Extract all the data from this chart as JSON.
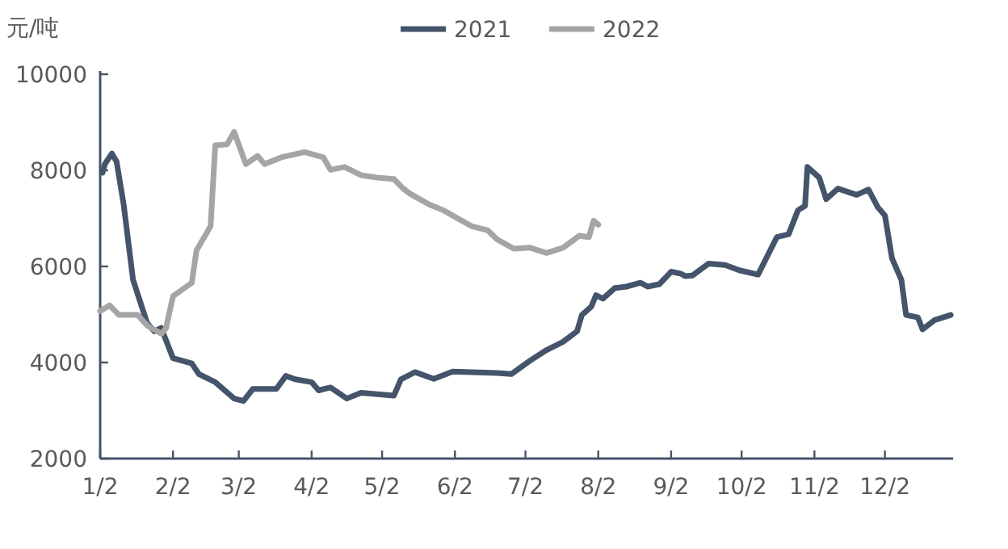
{
  "chart_data": {
    "type": "line",
    "ylabel": "元/吨",
    "legend": "top",
    "xlim": [
      "--01-02",
      "--12-31"
    ],
    "xticks": [
      {
        "value": "--01-02",
        "label": "1/2"
      },
      {
        "value": "--02-02",
        "label": "2/2"
      },
      {
        "value": "--03-02",
        "label": "3/2"
      },
      {
        "value": "--04-02",
        "label": "4/2"
      },
      {
        "value": "--05-02",
        "label": "5/2"
      },
      {
        "value": "--06-02",
        "label": "6/2"
      },
      {
        "value": "--07-02",
        "label": "7/2"
      },
      {
        "value": "--08-02",
        "label": "8/2"
      },
      {
        "value": "--09-02",
        "label": "9/2"
      },
      {
        "value": "--10-02",
        "label": "10/2"
      },
      {
        "value": "--11-02",
        "label": "11/2"
      },
      {
        "value": "--12-02",
        "label": "12/2"
      }
    ],
    "ylim": [
      2000,
      10000
    ],
    "yticks": [
      2000,
      4000,
      6000,
      8000,
      10000
    ],
    "series": [
      {
        "name": "2021",
        "color": "#44546a",
        "x": [
          "--01-03",
          "--01-04",
          "--01-07",
          "--01-09",
          "--01-12",
          "--01-16",
          "--01-19",
          "--01-22",
          "--01-25",
          "--01-28",
          "--02-02",
          "--02-10",
          "--02-13",
          "--02-20",
          "--02-28",
          "--03-04",
          "--03-08",
          "--03-18",
          "--03-22",
          "--03-26",
          "--04-02",
          "--04-05",
          "--04-10",
          "--04-17",
          "--04-23",
          "--05-07",
          "--05-10",
          "--05-16",
          "--05-24",
          "--06-01",
          "--06-20",
          "--06-26",
          "--07-04",
          "--07-11",
          "--07-18",
          "--07-24",
          "--07-26",
          "--07-30",
          "--08-01",
          "--08-04",
          "--08-09",
          "--08-14",
          "--08-20",
          "--08-23",
          "--08-28",
          "--09-02",
          "--09-06",
          "--09-08",
          "--09-11",
          "--09-18",
          "--09-25",
          "--10-01",
          "--10-09",
          "--10-13",
          "--10-17",
          "--10-22",
          "--10-26",
          "--10-29",
          "--10-30",
          "--11-04",
          "--11-07",
          "--11-12",
          "--11-20",
          "--11-25",
          "--11-29",
          "--12-02",
          "--12-05",
          "--12-09",
          "--12-11",
          "--12-16",
          "--12-18",
          "--12-23",
          "--12-30"
        ],
        "values": [
          7950,
          8130,
          8350,
          8180,
          7290,
          5720,
          5270,
          4820,
          4650,
          4720,
          4090,
          3980,
          3760,
          3590,
          3250,
          3200,
          3450,
          3450,
          3720,
          3650,
          3590,
          3420,
          3480,
          3250,
          3370,
          3310,
          3650,
          3800,
          3660,
          3810,
          3780,
          3760,
          4040,
          4260,
          4430,
          4650,
          4990,
          5160,
          5400,
          5330,
          5550,
          5580,
          5660,
          5580,
          5630,
          5890,
          5850,
          5800,
          5810,
          6060,
          6030,
          5920,
          5830,
          6220,
          6610,
          6670,
          7170,
          7260,
          8070,
          7850,
          7400,
          7620,
          7490,
          7600,
          7230,
          7060,
          6170,
          5720,
          4990,
          4940,
          4690,
          4880,
          4990
        ]
      },
      {
        "name": "2022",
        "color": "#a5a5a5",
        "x": [
          "--01-02",
          "--01-06",
          "--01-10",
          "--01-18",
          "--01-22",
          "--01-28",
          "--01-30",
          "--02-02",
          "--02-10",
          "--02-12",
          "--02-16",
          "--02-18",
          "--02-20",
          "--02-25",
          "--02-28",
          "--03-05",
          "--03-10",
          "--03-13",
          "--03-20",
          "--03-30",
          "--04-07",
          "--04-10",
          "--04-16",
          "--04-23",
          "--04-30",
          "--05-07",
          "--05-11",
          "--05-14",
          "--05-22",
          "--05-28",
          "--06-09",
          "--06-16",
          "--06-20",
          "--06-27",
          "--07-04",
          "--07-11",
          "--07-18",
          "--07-25",
          "--07-29",
          "--07-31",
          "--08-02"
        ],
        "values": [
          5070,
          5190,
          4990,
          4990,
          4770,
          4600,
          4710,
          5380,
          5660,
          6330,
          6670,
          6840,
          8520,
          8540,
          8800,
          8130,
          8300,
          8130,
          8270,
          8380,
          8270,
          8010,
          8070,
          7900,
          7850,
          7820,
          7620,
          7510,
          7290,
          7170,
          6840,
          6750,
          6560,
          6370,
          6390,
          6280,
          6390,
          6640,
          6610,
          6950,
          6870
        ]
      }
    ]
  }
}
